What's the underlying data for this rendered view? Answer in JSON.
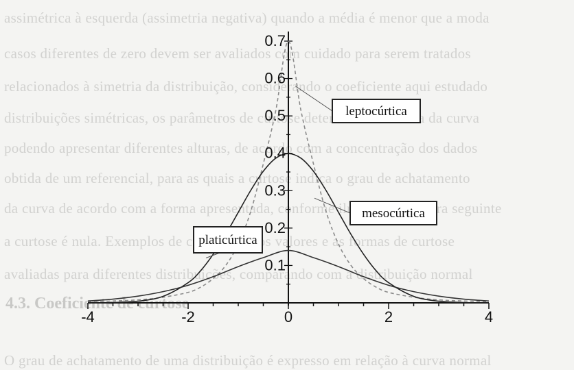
{
  "background_lines": [
    "assimétrica à esquerda (assimetria negativa) quando a média é menor que a moda",
    "casos diferentes de zero devem ser avaliados com cuidado para serem tratados",
    "relacionados à simetria da distribuição, considerando o coeficiente aqui estudado",
    "distribuições simétricas, os parâmetros de curtose determinam a forma da curva",
    "podendo apresentar diferentes alturas, de acordo com a concentração dos dados",
    "obtida de um referencial, para as quais a curtose indica o grau de achatamento",
    "da curva de acordo com a forma apresentada, conforme ilustrado na figura seguinte",
    "a curtose é nula. Exemplos de curvas com os valores e as formas de curtose",
    "avaliadas para diferentes distribuições, comparando com a distribuição normal",
    "",
    "",
    "O grau de achatamento de uma distribuição é expresso em relação à curva normal"
  ],
  "heading_text": "4.3. Coeficiente de curtose",
  "chart_data": {
    "type": "line",
    "xlim": [
      -4,
      4
    ],
    "ylim": [
      0,
      0.7
    ],
    "x_ticks": [
      -4,
      -2,
      0,
      2,
      4
    ],
    "x_tick_labels": [
      "-4",
      "-2",
      "0",
      "2",
      "4"
    ],
    "y_ticks": [
      0.1,
      0.2,
      0.3,
      0.4,
      0.5,
      0.6,
      0.7
    ],
    "y_tick_labels": [
      "0.1",
      "0.2",
      "0.3",
      "0.4",
      "0.5",
      "0.6",
      "0.7"
    ],
    "grid": false,
    "series": [
      {
        "name": "leptocúrtica",
        "style": "dashed",
        "color": "#8a8a8a",
        "x": [
          -4,
          -3.5,
          -3,
          -2.5,
          -2,
          -1.75,
          -1.5,
          -1.25,
          -1,
          -0.75,
          -0.5,
          -0.25,
          0,
          0.25,
          0.5,
          0.75,
          1,
          1.25,
          1.5,
          1.75,
          2,
          2.5,
          3,
          3.5,
          4
        ],
        "y": [
          0.003,
          0.005,
          0.008,
          0.015,
          0.028,
          0.042,
          0.065,
          0.1,
          0.157,
          0.245,
          0.372,
          0.515,
          0.7,
          0.515,
          0.372,
          0.245,
          0.157,
          0.1,
          0.065,
          0.042,
          0.028,
          0.015,
          0.008,
          0.005,
          0.003
        ]
      },
      {
        "name": "mesocúrtica",
        "style": "solid",
        "color": "#222222",
        "x": [
          -4,
          -3.5,
          -3,
          -2.5,
          -2,
          -1.75,
          -1.5,
          -1.25,
          -1,
          -0.75,
          -0.5,
          -0.25,
          0,
          0.25,
          0.5,
          0.75,
          1,
          1.25,
          1.5,
          1.75,
          2,
          2.5,
          3,
          3.5,
          4
        ],
        "y": [
          0.0001,
          0.0009,
          0.0044,
          0.0175,
          0.054,
          0.086,
          0.13,
          0.183,
          0.242,
          0.301,
          0.352,
          0.387,
          0.399,
          0.387,
          0.352,
          0.301,
          0.242,
          0.183,
          0.13,
          0.086,
          0.054,
          0.0175,
          0.0044,
          0.0009,
          0.0001
        ]
      },
      {
        "name": "platicúrtica",
        "style": "solid",
        "color": "#333333",
        "x": [
          -4,
          -3.5,
          -3,
          -2.5,
          -2,
          -1.5,
          -1,
          -0.5,
          0,
          0.5,
          1,
          1.5,
          2,
          2.5,
          3,
          3.5,
          4
        ],
        "y": [
          0.005,
          0.01,
          0.018,
          0.03,
          0.047,
          0.07,
          0.097,
          0.121,
          0.14,
          0.121,
          0.097,
          0.07,
          0.047,
          0.03,
          0.018,
          0.01,
          0.005
        ]
      }
    ],
    "annotations": [
      {
        "text": "leptocúrtica",
        "series": "leptocúrtica"
      },
      {
        "text": "mesocúrtica",
        "series": "mesocúrtica"
      },
      {
        "text": "platicúrtica",
        "series": "platicúrtica"
      }
    ]
  }
}
